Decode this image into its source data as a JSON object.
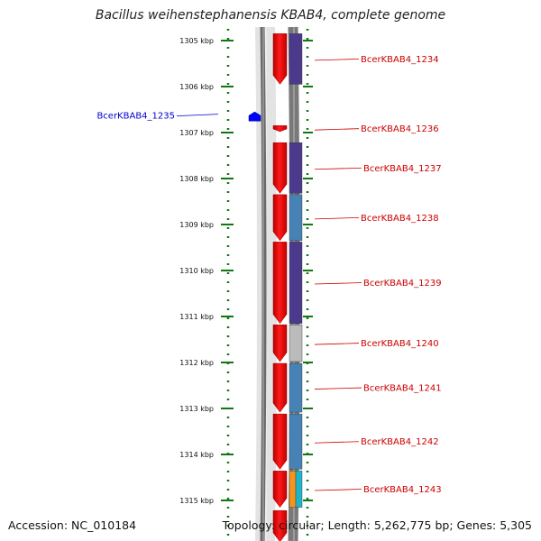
{
  "title": "Bacillus weihenstephanensis KBAB4, complete genome",
  "footer": {
    "accession": "Accession: NC_010184",
    "summary": "Topology: circular; Length: 5,262,775 bp; Genes: 5,305"
  },
  "colors": {
    "gene_red": "#ff0000",
    "label_red": "#cc0000",
    "label_blue": "#0000cc",
    "cog_purple": "#4b3a8c",
    "cog_blue": "#4682b4",
    "cog_gray": "#bbbbbb",
    "cog_orange": "#f7941d",
    "cog_cyan": "#1fb5c9",
    "ruler_green": "#117711",
    "backbone_gray": "#888888"
  },
  "ruler": {
    "ticks": [
      {
        "kbp": 1305,
        "label": "1305 kbp"
      },
      {
        "kbp": 1306,
        "label": "1306 kbp"
      },
      {
        "kbp": 1307,
        "label": "1307 kbp"
      },
      {
        "kbp": 1308,
        "label": "1308 kbp"
      },
      {
        "kbp": 1309,
        "label": "1309 kbp"
      },
      {
        "kbp": 1310,
        "label": "1310 kbp"
      },
      {
        "kbp": 1311,
        "label": "1311 kbp"
      },
      {
        "kbp": 1312,
        "label": "1312 kbp"
      },
      {
        "kbp": 1313,
        "label": "1313 kbp"
      },
      {
        "kbp": 1314,
        "label": "1314 kbp"
      },
      {
        "kbp": 1315,
        "label": "1315 kbp"
      }
    ]
  },
  "genes": [
    {
      "name": "BcerKBAB4_1234",
      "strand": "-",
      "start_kbp": 1304.85,
      "end_kbp": 1305.95,
      "cog": [
        "purple"
      ]
    },
    {
      "name": "BcerKBAB4_1235",
      "strand": "+",
      "start_kbp": 1306.55,
      "end_kbp": 1306.75,
      "cog": []
    },
    {
      "name": "BcerKBAB4_1236",
      "strand": "-",
      "start_kbp": 1306.85,
      "end_kbp": 1306.98,
      "cog": []
    },
    {
      "name": "BcerKBAB4_1237",
      "strand": "-",
      "start_kbp": 1307.22,
      "end_kbp": 1308.32,
      "cog": [
        "purple"
      ]
    },
    {
      "name": "BcerKBAB4_1238",
      "strand": "-",
      "start_kbp": 1308.35,
      "end_kbp": 1309.35,
      "cog": [
        "blue"
      ]
    },
    {
      "name": "BcerKBAB4_1239",
      "strand": "-",
      "start_kbp": 1309.38,
      "end_kbp": 1311.15,
      "cog": [
        "purple"
      ]
    },
    {
      "name": "BcerKBAB4_1240",
      "strand": "-",
      "start_kbp": 1311.18,
      "end_kbp": 1311.98,
      "cog": [
        "gray"
      ]
    },
    {
      "name": "BcerKBAB4_1241",
      "strand": "-",
      "start_kbp": 1312.02,
      "end_kbp": 1313.08,
      "cog": [
        "blue"
      ]
    },
    {
      "name": "BcerKBAB4_1242",
      "strand": "-",
      "start_kbp": 1313.12,
      "end_kbp": 1314.32,
      "cog": [
        "blue"
      ]
    },
    {
      "name": "BcerKBAB4_1243",
      "strand": "-",
      "start_kbp": 1314.36,
      "end_kbp": 1315.15,
      "cog": [
        "orange",
        "cyan"
      ]
    },
    {
      "name": "",
      "strand": "-",
      "start_kbp": 1315.22,
      "end_kbp": 1315.9,
      "cog": []
    }
  ]
}
